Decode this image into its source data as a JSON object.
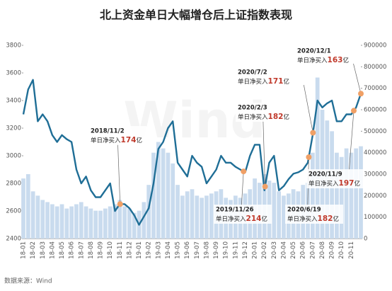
{
  "chart_data": {
    "type": "line-bar",
    "title": "北上资金单日大幅增仓后上证指数表现",
    "source": "数据来源：Wind",
    "categories": [
      "18-01",
      null,
      "18-02",
      null,
      "18-03",
      null,
      "18-04",
      null,
      "18-05",
      null,
      "18-06",
      null,
      "18-07",
      null,
      "18-08",
      null,
      "18-09",
      null,
      "18-10",
      null,
      "18-11",
      null,
      "18-12",
      null,
      "19-01",
      null,
      "19-02",
      null,
      "19-03",
      null,
      "19-04",
      null,
      "19-05",
      null,
      "19-06",
      null,
      "19-07",
      null,
      "19-08",
      null,
      "19-09",
      null,
      "19-10",
      null,
      "19-11",
      null,
      "19-12",
      null,
      "20-01",
      null,
      "20-02",
      null,
      "20-03",
      null,
      "20-04",
      null,
      "20-05",
      null,
      "20-06",
      null,
      "20-07",
      null,
      "20-08",
      null,
      "20-09",
      null,
      "20-10",
      null,
      "20-11",
      null,
      null
    ],
    "series": [
      {
        "kind": "line",
        "color": "#1f6e96",
        "values": [
          3300,
          3480,
          3550,
          3250,
          3300,
          3250,
          3150,
          3100,
          3150,
          3120,
          3100,
          2900,
          2800,
          2850,
          2750,
          2700,
          2700,
          2750,
          2800,
          2600,
          2650,
          2650,
          2620,
          2570,
          2500,
          2560,
          2620,
          2800,
          3050,
          3100,
          3200,
          3250,
          2950,
          2900,
          2850,
          3000,
          2950,
          2920,
          2800,
          2850,
          2900,
          3000,
          2950,
          2950,
          2920,
          2900,
          2880,
          3000,
          3080,
          3080,
          2750,
          2950,
          3000,
          2750,
          2780,
          2830,
          2870,
          2880,
          2900,
          2950,
          3150,
          3400,
          3350,
          3380,
          3400,
          3250,
          3250,
          3300,
          3300,
          3350,
          3450
        ]
      },
      {
        "kind": "bar",
        "axis": "y2",
        "color": "#c9dbee",
        "values": [
          280000,
          300000,
          220000,
          200000,
          180000,
          170000,
          160000,
          150000,
          160000,
          140000,
          150000,
          160000,
          170000,
          150000,
          140000,
          130000,
          130000,
          140000,
          150000,
          160000,
          180000,
          150000,
          140000,
          120000,
          130000,
          170000,
          250000,
          400000,
          450000,
          420000,
          400000,
          350000,
          250000,
          200000,
          220000,
          230000,
          200000,
          190000,
          200000,
          210000,
          220000,
          230000,
          190000,
          180000,
          200000,
          190000,
          210000,
          230000,
          280000,
          260000,
          300000,
          270000,
          260000,
          220000,
          200000,
          210000,
          230000,
          220000,
          250000,
          260000,
          400000,
          750000,
          600000,
          550000,
          500000,
          400000,
          380000,
          420000,
          400000,
          420000,
          430000
        ]
      }
    ],
    "ylim": [
      2400,
      3800
    ],
    "yticks": [
      2400,
      2600,
      2800,
      3000,
      3200,
      3400,
      3600,
      3800
    ],
    "y2lim": [
      0,
      900000
    ],
    "y2ticks": [
      0,
      100000,
      200000,
      300000,
      400000,
      500000,
      600000,
      700000,
      800000,
      900000
    ],
    "dot_color": "#f0a066",
    "annotations": [
      {
        "date": "2018/11/2",
        "prefix": "单日净买入",
        "amount": 174,
        "unit": "亿"
      },
      {
        "date": "2019/11/26",
        "prefix": "单日净买入",
        "amount": 214,
        "unit": "亿"
      },
      {
        "date": "2020/2/3",
        "prefix": "单日净买入",
        "amount": 182,
        "unit": "亿"
      },
      {
        "date": "2020/7/2",
        "prefix": "单日净买入",
        "amount": 171,
        "unit": "亿"
      },
      {
        "date": "2020/6/19",
        "prefix": "单日净买入",
        "amount": 182,
        "unit": "亿"
      },
      {
        "date": "2020/11/9",
        "prefix": "单日净买入",
        "amount": 197,
        "unit": "亿"
      },
      {
        "date": "2020/12/1",
        "prefix": "单日净买入",
        "amount": 163,
        "unit": "亿"
      }
    ]
  }
}
